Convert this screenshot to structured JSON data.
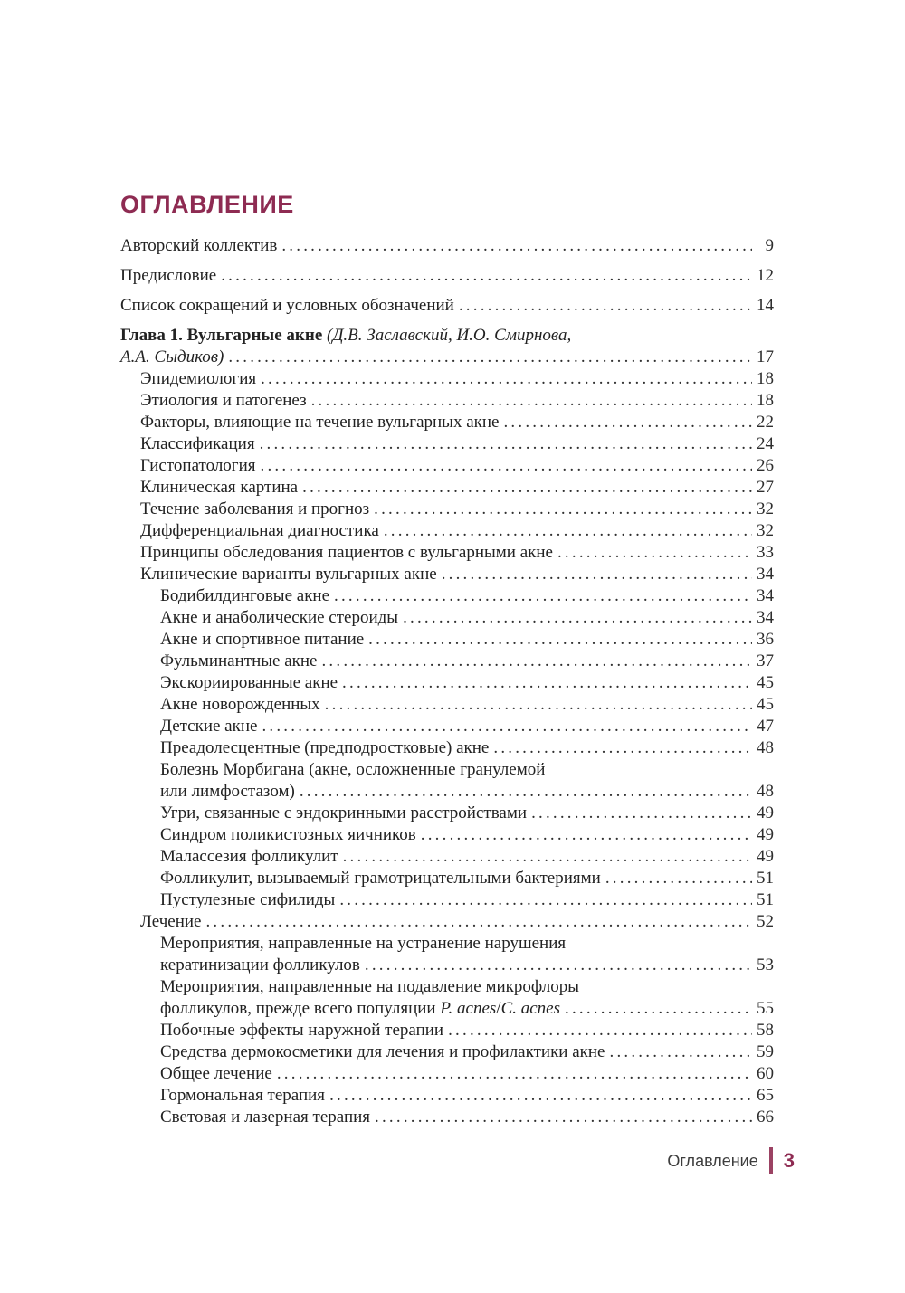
{
  "title": "ОГЛАВЛЕНИЕ",
  "accent_color": "#8e2b52",
  "text_color": "#222222",
  "footer": {
    "section": "Оглавление",
    "page": "3"
  },
  "toc": {
    "entries": [
      {
        "level": 0,
        "group": "front",
        "page": "9",
        "lines": [
          [
            {
              "t": "Авторский коллектив",
              "s": "n"
            }
          ]
        ]
      },
      {
        "level": 0,
        "group": "front",
        "page": "12",
        "lines": [
          [
            {
              "t": "Предисловие",
              "s": "n"
            }
          ]
        ]
      },
      {
        "level": 0,
        "group": "front",
        "page": "14",
        "lines": [
          [
            {
              "t": "Список сокращений и условных обозначений",
              "s": "n"
            }
          ]
        ]
      },
      {
        "level": 0,
        "group": "chapter",
        "page": "17",
        "lines": [
          [
            {
              "t": "Глава 1. Вульгарные акне ",
              "s": "b"
            },
            {
              "t": "(Д.В. Заславский, И.О. Смирнова,",
              "s": "i"
            }
          ],
          [
            {
              "t": "А.А. Сыдиков)",
              "s": "i"
            }
          ]
        ]
      },
      {
        "level": 1,
        "page": "18",
        "lines": [
          [
            {
              "t": "Эпидемиология",
              "s": "n"
            }
          ]
        ]
      },
      {
        "level": 1,
        "page": "18",
        "lines": [
          [
            {
              "t": "Этиология и патогенез",
              "s": "n"
            }
          ]
        ]
      },
      {
        "level": 1,
        "page": "22",
        "lines": [
          [
            {
              "t": "Факторы, влияющие на течение вульгарных акне",
              "s": "n"
            }
          ]
        ]
      },
      {
        "level": 1,
        "page": "24",
        "lines": [
          [
            {
              "t": "Классификация",
              "s": "n"
            }
          ]
        ]
      },
      {
        "level": 1,
        "page": "26",
        "lines": [
          [
            {
              "t": "Гистопатология",
              "s": "n"
            }
          ]
        ]
      },
      {
        "level": 1,
        "page": "27",
        "lines": [
          [
            {
              "t": "Клиническая картина",
              "s": "n"
            }
          ]
        ]
      },
      {
        "level": 1,
        "page": "32",
        "lines": [
          [
            {
              "t": "Течение заболевания и прогноз",
              "s": "n"
            }
          ]
        ]
      },
      {
        "level": 1,
        "page": "32",
        "lines": [
          [
            {
              "t": "Дифференциальная диагностика",
              "s": "n"
            }
          ]
        ]
      },
      {
        "level": 1,
        "page": "33",
        "lines": [
          [
            {
              "t": "Принципы обследования пациентов с вульгарными акне",
              "s": "n"
            }
          ]
        ]
      },
      {
        "level": 1,
        "page": "34",
        "lines": [
          [
            {
              "t": "Клинические варианты вульгарных акне",
              "s": "n"
            }
          ]
        ]
      },
      {
        "level": 2,
        "page": "34",
        "lines": [
          [
            {
              "t": "Бодибилдинговые акне",
              "s": "n"
            }
          ]
        ]
      },
      {
        "level": 2,
        "page": "34",
        "lines": [
          [
            {
              "t": "Акне и анаболические стероиды",
              "s": "n"
            }
          ]
        ]
      },
      {
        "level": 2,
        "page": "36",
        "lines": [
          [
            {
              "t": "Акне и спортивное питание",
              "s": "n"
            }
          ]
        ]
      },
      {
        "level": 2,
        "page": "37",
        "lines": [
          [
            {
              "t": "Фульминантные акне",
              "s": "n"
            }
          ]
        ]
      },
      {
        "level": 2,
        "page": "45",
        "lines": [
          [
            {
              "t": "Экскориированные акне",
              "s": "n"
            }
          ]
        ]
      },
      {
        "level": 2,
        "page": "45",
        "lines": [
          [
            {
              "t": "Акне новорожденных",
              "s": "n"
            }
          ]
        ]
      },
      {
        "level": 2,
        "page": "47",
        "lines": [
          [
            {
              "t": "Детские акне",
              "s": "n"
            }
          ]
        ]
      },
      {
        "level": 2,
        "page": "48",
        "lines": [
          [
            {
              "t": "Преадолесцентные (предподростковые) акне",
              "s": "n"
            }
          ]
        ]
      },
      {
        "level": 2,
        "page": "48",
        "lines": [
          [
            {
              "t": "Болезнь Морбигана (акне, осложненные гранулемой",
              "s": "n"
            }
          ],
          [
            {
              "t": "или лимфостазом)",
              "s": "n"
            }
          ]
        ]
      },
      {
        "level": 2,
        "page": "49",
        "lines": [
          [
            {
              "t": "Угри, связанные с эндокринными расстройствами",
              "s": "n"
            }
          ]
        ]
      },
      {
        "level": 2,
        "page": "49",
        "lines": [
          [
            {
              "t": "Синдром поликистозных яичников",
              "s": "n"
            }
          ]
        ]
      },
      {
        "level": 2,
        "page": "49",
        "lines": [
          [
            {
              "t": "Малассезия фолликулит",
              "s": "n"
            }
          ]
        ]
      },
      {
        "level": 2,
        "page": "51",
        "lines": [
          [
            {
              "t": "Фолликулит, вызываемый грамотрицательными бактериями",
              "s": "n"
            }
          ]
        ]
      },
      {
        "level": 2,
        "page": "51",
        "lines": [
          [
            {
              "t": "Пустулезные сифилиды",
              "s": "n"
            }
          ]
        ]
      },
      {
        "level": 1,
        "page": "52",
        "lines": [
          [
            {
              "t": "Лечение",
              "s": "n"
            }
          ]
        ]
      },
      {
        "level": 2,
        "page": "53",
        "lines": [
          [
            {
              "t": "Мероприятия, направленные на устранение нарушения",
              "s": "n"
            }
          ],
          [
            {
              "t": "кератинизации фолликулов",
              "s": "n"
            }
          ]
        ]
      },
      {
        "level": 2,
        "page": "55",
        "lines": [
          [
            {
              "t": "Мероприятия, направленные на подавление микрофлоры",
              "s": "n"
            }
          ],
          [
            {
              "t": "фолликулов, прежде всего популяции ",
              "s": "n"
            },
            {
              "t": "P. acnes",
              "s": "i"
            },
            {
              "t": "/",
              "s": "n"
            },
            {
              "t": "C. acnes",
              "s": "i"
            }
          ]
        ]
      },
      {
        "level": 2,
        "page": "58",
        "lines": [
          [
            {
              "t": "Побочные эффекты наружной терапии",
              "s": "n"
            }
          ]
        ]
      },
      {
        "level": 2,
        "page": "59",
        "lines": [
          [
            {
              "t": "Средства дермокосметики для лечения и профилактики акне",
              "s": "n"
            }
          ]
        ]
      },
      {
        "level": 2,
        "page": "60",
        "lines": [
          [
            {
              "t": "Общее лечение",
              "s": "n"
            }
          ]
        ]
      },
      {
        "level": 2,
        "page": "65",
        "lines": [
          [
            {
              "t": "Гормональная терапия",
              "s": "n"
            }
          ]
        ]
      },
      {
        "level": 2,
        "page": "66",
        "lines": [
          [
            {
              "t": "Световая и лазерная терапия",
              "s": "n"
            }
          ]
        ]
      }
    ]
  }
}
